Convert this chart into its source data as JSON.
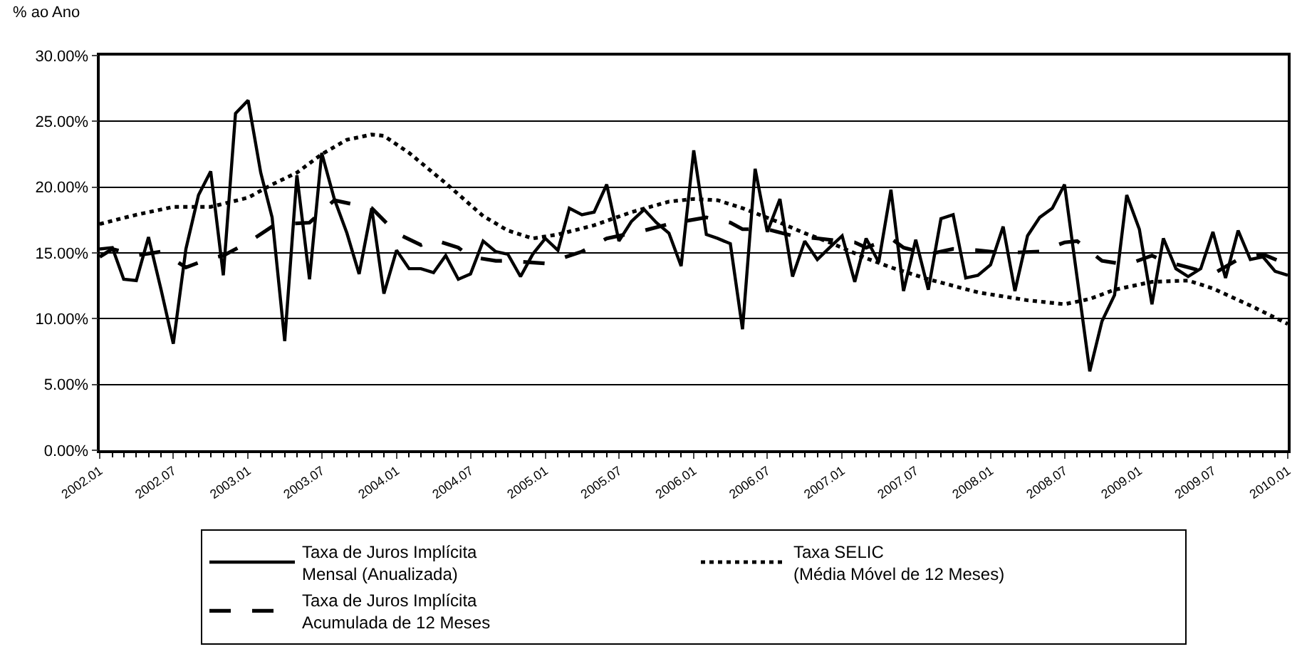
{
  "chart_data": {
    "type": "line",
    "ylabel": "% ao Ano",
    "x": [
      "2002-01",
      "2002-02",
      "2002-03",
      "2002-04",
      "2002-05",
      "2002-06",
      "2002-07",
      "2002-08",
      "2002-09",
      "2002-10",
      "2002-11",
      "2002-12",
      "2003-01",
      "2003-02",
      "2003-03",
      "2003-04",
      "2003-05",
      "2003-06",
      "2003-07",
      "2003-08",
      "2003-09",
      "2003-10",
      "2003-11",
      "2003-12",
      "2004-01",
      "2004-02",
      "2004-03",
      "2004-04",
      "2004-05",
      "2004-06",
      "2004-07",
      "2004-08",
      "2004-09",
      "2004-10",
      "2004-11",
      "2004-12",
      "2005-01",
      "2005-02",
      "2005-03",
      "2005-04",
      "2005-05",
      "2005-06",
      "2005-07",
      "2005-08",
      "2005-09",
      "2005-10",
      "2005-11",
      "2005-12",
      "2006-01",
      "2006-02",
      "2006-03",
      "2006-04",
      "2006-05",
      "2006-06",
      "2006-07",
      "2006-08",
      "2006-09",
      "2006-10",
      "2006-11",
      "2006-12",
      "2007-01",
      "2007-02",
      "2007-03",
      "2007-04",
      "2007-05",
      "2007-06",
      "2007-07",
      "2007-08",
      "2007-09",
      "2007-10",
      "2007-11",
      "2007-12",
      "2008-01",
      "2008-02",
      "2008-03",
      "2008-04",
      "2008-05",
      "2008-06",
      "2008-07",
      "2008-08",
      "2008-09",
      "2008-10",
      "2008-11",
      "2008-12",
      "2009-01",
      "2009-02",
      "2009-03",
      "2009-04",
      "2009-05",
      "2009-06",
      "2009-07",
      "2009-08",
      "2009-09",
      "2009-10",
      "2009-11",
      "2009-12",
      "2010-01"
    ],
    "series": [
      {
        "name": "Taxa de Juros Implícita\nMensal (Anualizada)",
        "color": "#000000",
        "line_style": "solid",
        "values": [
          15.3,
          15.4,
          13.0,
          12.9,
          16.2,
          12.2,
          8.1,
          15.3,
          19.4,
          21.2,
          13.3,
          25.6,
          26.6,
          21.1,
          17.7,
          8.3,
          20.9,
          13.0,
          22.6,
          19.1,
          16.5,
          13.4,
          18.4,
          11.9,
          15.2,
          13.8,
          13.8,
          13.5,
          14.8,
          13.0,
          13.4,
          15.9,
          15.1,
          14.9,
          13.2,
          14.9,
          16.1,
          15.2,
          18.4,
          17.9,
          18.1,
          20.2,
          15.9,
          17.4,
          18.3,
          17.3,
          16.5,
          14.0,
          22.8,
          16.4,
          16.1,
          15.7,
          9.2,
          21.4,
          16.6,
          19.1,
          13.2,
          15.9,
          14.5,
          15.4,
          16.3,
          12.8,
          16.1,
          14.3,
          19.8,
          12.1,
          16.0,
          12.2,
          17.6,
          17.9,
          13.1,
          13.3,
          14.1,
          17.0,
          12.1,
          16.3,
          17.7,
          18.4,
          20.2,
          13.1,
          6.0,
          9.8,
          11.8,
          19.4,
          16.8,
          11.1,
          16.1,
          13.8,
          13.2,
          13.8,
          16.6,
          13.1,
          16.7,
          14.5,
          14.7,
          13.6,
          13.3
        ]
      },
      {
        "name": "Taxa SELIC\n(Média Móvel de 12 Meses)",
        "color": "#000000",
        "line_style": "dotted",
        "x": [
          "2002-01",
          "2002-04",
          "2002-07",
          "2002-10",
          "2003-01",
          "2003-03",
          "2003-05",
          "2003-07",
          "2003-09",
          "2003-11",
          "2003-12",
          "2004-02",
          "2004-05",
          "2004-08",
          "2004-10",
          "2004-12",
          "2005-02",
          "2005-05",
          "2005-08",
          "2005-11",
          "2006-01",
          "2006-03",
          "2006-05",
          "2006-08",
          "2006-10",
          "2006-12",
          "2007-03",
          "2007-05",
          "2007-08",
          "2007-12",
          "2008-04",
          "2008-07",
          "2008-09",
          "2008-11",
          "2009-02",
          "2009-05",
          "2009-07",
          "2009-10",
          "2010-01"
        ],
        "values": [
          17.2,
          17.9,
          18.5,
          18.5,
          19.2,
          20.2,
          21.1,
          22.5,
          23.6,
          24.0,
          23.9,
          22.6,
          20.3,
          17.8,
          16.7,
          16.1,
          16.4,
          17.1,
          18.1,
          18.9,
          19.1,
          19.0,
          18.4,
          17.3,
          16.5,
          15.8,
          14.6,
          13.9,
          13.0,
          12.0,
          11.4,
          11.1,
          11.5,
          12.2,
          12.8,
          12.9,
          12.3,
          11.0,
          9.6
        ]
      },
      {
        "name": "Taxa de Juros Implícita\nAcumulada de 12 Meses",
        "color": "#000000",
        "line_style": "dashed",
        "x": [
          "2002-01",
          "2002-02",
          "2002-04",
          "2002-06",
          "2002-08",
          "2002-10",
          "2002-11",
          "2003-01",
          "2003-03",
          "2003-04",
          "2003-06",
          "2003-08",
          "2003-10",
          "2003-11",
          "2004-01",
          "2004-03",
          "2004-04",
          "2004-06",
          "2004-07",
          "2004-09",
          "2004-10",
          "2005-01",
          "2005-02",
          "2005-04",
          "2005-06",
          "2005-09",
          "2005-11",
          "2006-02",
          "2006-04",
          "2006-05",
          "2006-07",
          "2006-09",
          "2006-11",
          "2007-02",
          "2007-03",
          "2007-05",
          "2007-06",
          "2007-08",
          "2007-10",
          "2007-12",
          "2008-02",
          "2008-05",
          "2008-07",
          "2008-08",
          "2008-10",
          "2008-12",
          "2009-02",
          "2009-03",
          "2009-05",
          "2009-07",
          "2009-09",
          "2009-11",
          "2010-01"
        ],
        "values": [
          14.7,
          15.3,
          14.8,
          15.1,
          13.9,
          14.6,
          14.8,
          15.8,
          17.0,
          17.2,
          17.3,
          19.0,
          18.6,
          18.4,
          16.5,
          15.6,
          16.0,
          15.4,
          14.7,
          14.4,
          14.4,
          14.2,
          14.5,
          15.1,
          16.1,
          16.7,
          17.2,
          17.7,
          17.3,
          16.8,
          16.8,
          16.3,
          16.1,
          15.8,
          15.4,
          16.1,
          15.4,
          14.9,
          15.3,
          15.2,
          15.0,
          15.1,
          15.8,
          15.9,
          14.4,
          14.1,
          14.8,
          14.4,
          13.9,
          13.4,
          14.5,
          14.9,
          14.1
        ]
      }
    ],
    "xlim": [
      "2002-01",
      "2010-01"
    ],
    "xticks": [
      {
        "value": "2002-01",
        "label": "2002.01"
      },
      {
        "value": "2002-07",
        "label": "2002.07"
      },
      {
        "value": "2003-01",
        "label": "2003.01"
      },
      {
        "value": "2003-07",
        "label": "2003.07"
      },
      {
        "value": "2004-01",
        "label": "2004.01"
      },
      {
        "value": "2004-07",
        "label": "2004.07"
      },
      {
        "value": "2005-01",
        "label": "2005.01"
      },
      {
        "value": "2005-07",
        "label": "2005.07"
      },
      {
        "value": "2006-01",
        "label": "2006.01"
      },
      {
        "value": "2006-07",
        "label": "2006.07"
      },
      {
        "value": "2007-01",
        "label": "2007.01"
      },
      {
        "value": "2007-07",
        "label": "2007.07"
      },
      {
        "value": "2008-01",
        "label": "2008.01"
      },
      {
        "value": "2008-07",
        "label": "2008.07"
      },
      {
        "value": "2009-01",
        "label": "2009.01"
      },
      {
        "value": "2009-07",
        "label": "2009.07"
      },
      {
        "value": "2010-01",
        "label": "2010.01"
      }
    ],
    "ylim": [
      0,
      30
    ],
    "yticks": [
      {
        "value": 0,
        "label": "0.00%"
      },
      {
        "value": 5,
        "label": "5.00%"
      },
      {
        "value": 10,
        "label": "10.00%"
      },
      {
        "value": 15,
        "label": "15.00%"
      },
      {
        "value": 20,
        "label": "20.00%"
      },
      {
        "value": 25,
        "label": "25.00%"
      },
      {
        "value": 30,
        "label": "30.00%"
      }
    ],
    "grid": "y",
    "legend": "bottom",
    "marker": "none"
  }
}
